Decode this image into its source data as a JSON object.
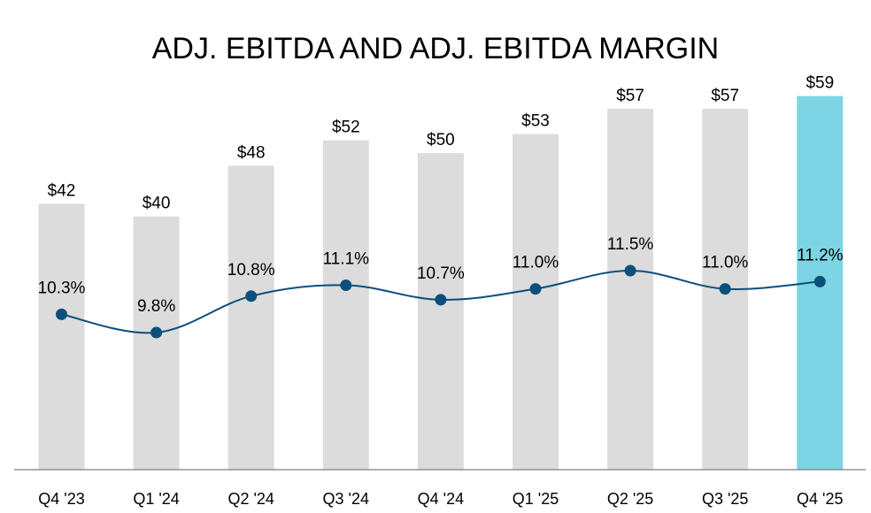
{
  "chart_data": {
    "type": "bar",
    "title": "ADJ. EBITDA AND ADJ. EBITDA MARGIN",
    "categories": [
      "Q4 '23",
      "Q1 '24",
      "Q2 '24",
      "Q3 '24",
      "Q4 '24",
      "Q1 '25",
      "Q2 '25",
      "Q3 '25",
      "Q4 '25"
    ],
    "series": [
      {
        "type": "bar",
        "values": [
          42,
          40,
          48,
          52,
          50,
          53,
          57,
          57,
          59
        ],
        "labels": [
          "$42",
          "$40",
          "$48",
          "$52",
          "$50",
          "$53",
          "$57",
          "$57",
          "$59"
        ],
        "color": "#dcdcdc",
        "highlight_color": "#7dd4e4",
        "highlight_index": 8
      },
      {
        "type": "line",
        "values": [
          10.3,
          9.8,
          10.8,
          11.1,
          10.7,
          11.0,
          11.5,
          11.0,
          11.2
        ],
        "labels": [
          "10.3%",
          "9.8%",
          "10.8%",
          "11.1%",
          "10.7%",
          "11.0%",
          "11.5%",
          "11.0%",
          "11.2%"
        ],
        "color": "#0b4f7c",
        "smooth": true
      }
    ],
    "ylim": [
      0,
      63
    ],
    "grid": false,
    "axis_color": "#7f7f7f"
  }
}
